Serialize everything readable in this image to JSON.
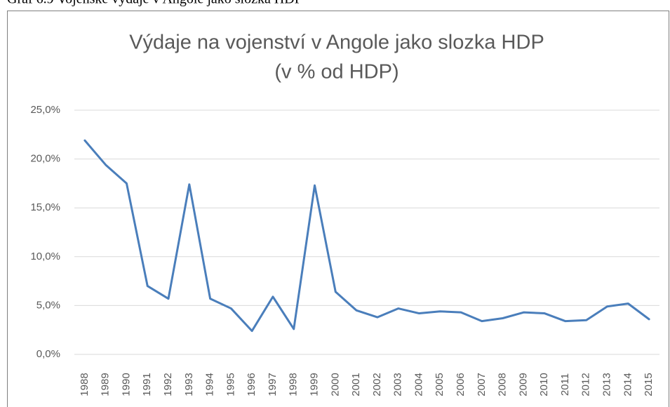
{
  "caption": "Graf 6.9 Vojenské výdaje v Angole jako složka HDP",
  "chart_data": {
    "type": "line",
    "title": "Výdaje na vojenství  v Angole jako slozka HDP",
    "subtitle": "(v % od HDP)",
    "categories": [
      "1988",
      "1989",
      "1990",
      "1991",
      "1992",
      "1993",
      "1994",
      "1995",
      "1996",
      "1997",
      "1998",
      "1999",
      "2000",
      "2001",
      "2002",
      "2003",
      "2004",
      "2005",
      "2006",
      "2007",
      "2008",
      "2009",
      "2010",
      "2011",
      "2012",
      "2013",
      "2014",
      "2015"
    ],
    "series": [
      {
        "name": "Výdaje na vojenství",
        "color": "#4a7ebb",
        "values": [
          21.9,
          19.4,
          17.5,
          7.0,
          5.7,
          17.4,
          5.7,
          4.7,
          2.4,
          5.9,
          2.6,
          17.3,
          6.4,
          4.5,
          3.8,
          4.7,
          4.2,
          4.4,
          4.3,
          3.4,
          3.7,
          4.3,
          4.2,
          3.4,
          3.5,
          4.9,
          5.2,
          3.6
        ]
      }
    ],
    "ylim": [
      0,
      25
    ],
    "yticks": [
      {
        "value": 0,
        "label": "0,0%"
      },
      {
        "value": 5,
        "label": "5,0%"
      },
      {
        "value": 10,
        "label": "10,0%"
      },
      {
        "value": 15,
        "label": "15,0%"
      },
      {
        "value": 20,
        "label": "20,0%"
      },
      {
        "value": 25,
        "label": "25,0%"
      }
    ],
    "grid": true
  }
}
